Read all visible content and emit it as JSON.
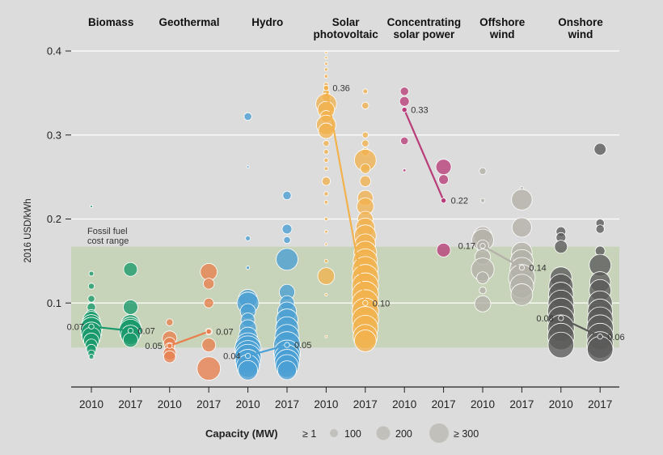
{
  "chart_data": {
    "type": "scatter",
    "ylabel": "2016 USD/kWh",
    "ylim": [
      0,
      0.42
    ],
    "y_ticks": [
      "0.1",
      "0.2",
      "0.3",
      "0.4"
    ],
    "y_tick_values": [
      0.1,
      0.2,
      0.3,
      0.4
    ],
    "years": [
      "2010",
      "2017"
    ],
    "band": {
      "label_line1": "Fossil fuel",
      "label_line2": "cost range",
      "low": 0.047,
      "high": 0.167,
      "color": "#c3d2b3"
    },
    "legend": {
      "title": "Capacity (MW)",
      "items": [
        {
          "label": "≥ 1",
          "size": 1
        },
        {
          "label": "100",
          "size": 100
        },
        {
          "label": "200",
          "size": 200
        },
        {
          "label": "≥ 300",
          "size": 300
        }
      ]
    },
    "technologies": [
      {
        "name_line1": "Biomass",
        "name_line2": "",
        "color": "#1a9a6c",
        "avg_2010": 0.072,
        "avg_2017": 0.067,
        "label_2010": "0.07",
        "label_2017": "0.07",
        "projects_2010": [
          [
            0.215,
            2
          ],
          [
            0.135,
            10
          ],
          [
            0.12,
            15
          ],
          [
            0.105,
            20
          ],
          [
            0.095,
            30
          ],
          [
            0.085,
            60
          ],
          [
            0.08,
            120
          ],
          [
            0.075,
            150
          ],
          [
            0.07,
            200
          ],
          [
            0.065,
            180
          ],
          [
            0.06,
            150
          ],
          [
            0.055,
            100
          ],
          [
            0.05,
            60
          ],
          [
            0.045,
            40
          ],
          [
            0.04,
            20
          ],
          [
            0.036,
            10
          ]
        ],
        "projects_2017": [
          [
            0.14,
            80
          ],
          [
            0.095,
            90
          ],
          [
            0.075,
            150
          ],
          [
            0.07,
            200
          ],
          [
            0.067,
            220
          ],
          [
            0.062,
            160
          ],
          [
            0.056,
            90
          ]
        ]
      },
      {
        "name_line1": "Geothermal",
        "name_line2": "",
        "color": "#e8804e",
        "avg_2010": 0.049,
        "avg_2017": 0.066,
        "label_2010": "0.05",
        "label_2017": "0.07",
        "projects_2010": [
          [
            0.077,
            20
          ],
          [
            0.058,
            90
          ],
          [
            0.052,
            60
          ],
          [
            0.047,
            40
          ],
          [
            0.04,
            70
          ],
          [
            0.036,
            60
          ]
        ],
        "projects_2017": [
          [
            0.137,
            120
          ],
          [
            0.123,
            50
          ],
          [
            0.1,
            40
          ],
          [
            0.066,
            20
          ],
          [
            0.05,
            80
          ],
          [
            0.022,
            230
          ]
        ]
      },
      {
        "name_line1": "Hydro",
        "name_line2": "",
        "color": "#4a9fd4",
        "avg_2010": 0.037,
        "avg_2017": 0.05,
        "label_2010": "0.04",
        "label_2017": "0.05",
        "projects_2010": [
          [
            0.322,
            25
          ],
          [
            0.262,
            2
          ],
          [
            0.177,
            10
          ],
          [
            0.142,
            5
          ],
          [
            0.105,
            150
          ],
          [
            0.1,
            200
          ],
          [
            0.09,
            100
          ],
          [
            0.08,
            80
          ],
          [
            0.07,
            120
          ],
          [
            0.06,
            150
          ],
          [
            0.05,
            250
          ],
          [
            0.045,
            300
          ],
          [
            0.04,
            280
          ],
          [
            0.035,
            300
          ],
          [
            0.03,
            260
          ],
          [
            0.025,
            220
          ],
          [
            0.02,
            160
          ]
        ],
        "projects_2017": [
          [
            0.228,
            30
          ],
          [
            0.188,
            40
          ],
          [
            0.175,
            20
          ],
          [
            0.152,
            200
          ],
          [
            0.113,
            100
          ],
          [
            0.1,
            90
          ],
          [
            0.09,
            150
          ],
          [
            0.08,
            200
          ],
          [
            0.07,
            220
          ],
          [
            0.06,
            250
          ],
          [
            0.05,
            300
          ],
          [
            0.04,
            300
          ],
          [
            0.035,
            280
          ],
          [
            0.03,
            260
          ],
          [
            0.025,
            220
          ],
          [
            0.02,
            150
          ]
        ]
      },
      {
        "name_line1": "Solar",
        "name_line2": "photovoltaic",
        "color": "#f2b24e",
        "avg_2010": 0.356,
        "avg_2017": 0.1,
        "label_2010": "0.36",
        "label_2017": "0.10",
        "projects_2010": [
          [
            0.398,
            2
          ],
          [
            0.392,
            3
          ],
          [
            0.385,
            4
          ],
          [
            0.378,
            5
          ],
          [
            0.37,
            6
          ],
          [
            0.36,
            8
          ],
          [
            0.35,
            20
          ],
          [
            0.345,
            30
          ],
          [
            0.337,
            180
          ],
          [
            0.33,
            120
          ],
          [
            0.322,
            60
          ],
          [
            0.312,
            160
          ],
          [
            0.305,
            100
          ],
          [
            0.29,
            15
          ],
          [
            0.28,
            10
          ],
          [
            0.27,
            8
          ],
          [
            0.26,
            6
          ],
          [
            0.245,
            30
          ],
          [
            0.23,
            8
          ],
          [
            0.22,
            6
          ],
          [
            0.2,
            5
          ],
          [
            0.185,
            4
          ],
          [
            0.17,
            3
          ],
          [
            0.15,
            5
          ],
          [
            0.132,
            120
          ],
          [
            0.11,
            3
          ],
          [
            0.06,
            2
          ]
        ],
        "projects_2017": [
          [
            0.352,
            10
          ],
          [
            0.335,
            20
          ],
          [
            0.3,
            15
          ],
          [
            0.29,
            20
          ],
          [
            0.28,
            25
          ],
          [
            0.27,
            200
          ],
          [
            0.26,
            40
          ],
          [
            0.245,
            50
          ],
          [
            0.225,
            100
          ],
          [
            0.215,
            120
          ],
          [
            0.2,
            100
          ],
          [
            0.19,
            150
          ],
          [
            0.18,
            200
          ],
          [
            0.17,
            180
          ],
          [
            0.16,
            220
          ],
          [
            0.15,
            250
          ],
          [
            0.14,
            280
          ],
          [
            0.13,
            300
          ],
          [
            0.12,
            300
          ],
          [
            0.11,
            300
          ],
          [
            0.1,
            300
          ],
          [
            0.09,
            300
          ],
          [
            0.08,
            300
          ],
          [
            0.07,
            280
          ],
          [
            0.06,
            250
          ],
          [
            0.055,
            200
          ]
        ]
      },
      {
        "name_line1": "Concentrating",
        "name_line2": "solar power",
        "color": "#b83d7a",
        "avg_2010": 0.33,
        "avg_2017": 0.222,
        "label_2010": "0.33",
        "label_2017": "0.22",
        "projects_2010": [
          [
            0.352,
            30
          ],
          [
            0.34,
            40
          ],
          [
            0.33,
            10
          ],
          [
            0.293,
            25
          ],
          [
            0.258,
            4
          ]
        ],
        "projects_2017": [
          [
            0.262,
            100
          ],
          [
            0.247,
            40
          ],
          [
            0.163,
            80
          ]
        ]
      },
      {
        "name_line1": "Offshore",
        "name_line2": "wind",
        "color": "#b4b1a8",
        "avg_2010": 0.168,
        "avg_2017": 0.142,
        "label_2010": "0.17",
        "label_2017": "0.14",
        "projects_2010": [
          [
            0.257,
            20
          ],
          [
            0.222,
            8
          ],
          [
            0.18,
            140
          ],
          [
            0.175,
            200
          ],
          [
            0.168,
            60
          ],
          [
            0.155,
            100
          ],
          [
            0.14,
            220
          ],
          [
            0.13,
            60
          ],
          [
            0.115,
            20
          ],
          [
            0.099,
            110
          ]
        ],
        "projects_2017": [
          [
            0.237,
            4
          ],
          [
            0.223,
            180
          ],
          [
            0.19,
            160
          ],
          [
            0.16,
            180
          ],
          [
            0.15,
            220
          ],
          [
            0.14,
            240
          ],
          [
            0.13,
            300
          ],
          [
            0.12,
            240
          ],
          [
            0.11,
            200
          ]
        ]
      },
      {
        "name_line1": "Onshore",
        "name_line2": "wind",
        "color": "#5a5a5a",
        "avg_2010": 0.082,
        "avg_2017": 0.06,
        "label_2010": "0.08",
        "label_2017": "0.06",
        "projects_2010": [
          [
            0.185,
            40
          ],
          [
            0.178,
            40
          ],
          [
            0.167,
            70
          ],
          [
            0.13,
            200
          ],
          [
            0.12,
            250
          ],
          [
            0.11,
            260
          ],
          [
            0.1,
            280
          ],
          [
            0.09,
            300
          ],
          [
            0.08,
            300
          ],
          [
            0.07,
            300
          ],
          [
            0.06,
            300
          ],
          [
            0.05,
            280
          ]
        ],
        "projects_2017": [
          [
            0.283,
            60
          ],
          [
            0.195,
            30
          ],
          [
            0.188,
            30
          ],
          [
            0.162,
            40
          ],
          [
            0.145,
            200
          ],
          [
            0.125,
            180
          ],
          [
            0.115,
            200
          ],
          [
            0.1,
            250
          ],
          [
            0.09,
            260
          ],
          [
            0.08,
            280
          ],
          [
            0.07,
            300
          ],
          [
            0.06,
            300
          ],
          [
            0.05,
            300
          ],
          [
            0.045,
            280
          ]
        ]
      }
    ]
  }
}
